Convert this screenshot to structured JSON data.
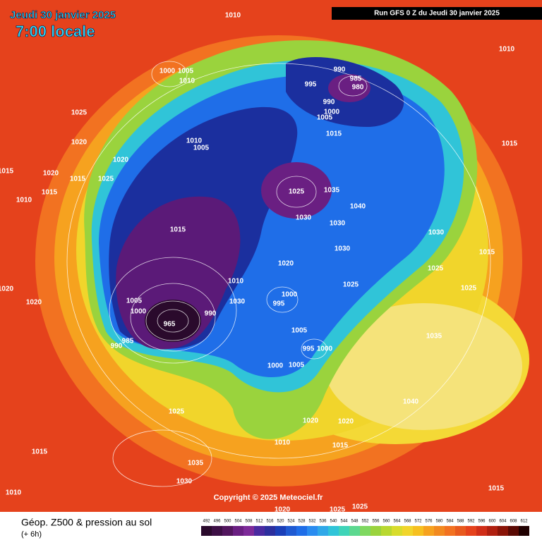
{
  "header": {
    "date": "Jeudi 30 janvier 2025",
    "time": "7:00 locale",
    "run": "Run GFS 0 Z du Jeudi 30 janvier 2025"
  },
  "footer": {
    "title": "Géop. Z500 & pression au sol",
    "subtitle": "(+ 6h)",
    "copyright": "Copyright © 2025 Meteociel.fr"
  },
  "legend": {
    "labels": [
      492,
      496,
      500,
      504,
      508,
      512,
      516,
      520,
      524,
      528,
      532,
      536,
      540,
      544,
      548,
      552,
      556,
      560,
      564,
      568,
      572,
      576,
      580,
      584,
      588,
      592,
      596,
      600,
      604,
      608,
      612
    ]
  },
  "isobars": [
    "1010",
    "1000",
    "1005",
    "1010",
    "990",
    "985",
    "980",
    "995",
    "990",
    "1000",
    "1005",
    "1015",
    "1025",
    "1020",
    "1020",
    "1020",
    "1015",
    "1015",
    "1025",
    "1010",
    "1010",
    "1005",
    "1025",
    "1035",
    "1030",
    "1040",
    "1030",
    "1030",
    "1015",
    "1020",
    "1025",
    "1010",
    "1000",
    "995",
    "1030",
    "1005",
    "1000",
    "965",
    "990",
    "985",
    "990",
    "1005",
    "995",
    "1000",
    "1000",
    "1005",
    "1025",
    "1020",
    "1020",
    "1010",
    "1015",
    "1015",
    "1035",
    "1030",
    "1010",
    "1020",
    "1025",
    "1025",
    "1010",
    "1015",
    "1030",
    "1025",
    "1015",
    "1025",
    "1035",
    "1040",
    "1015",
    "1020",
    "1020",
    "1015"
  ]
}
